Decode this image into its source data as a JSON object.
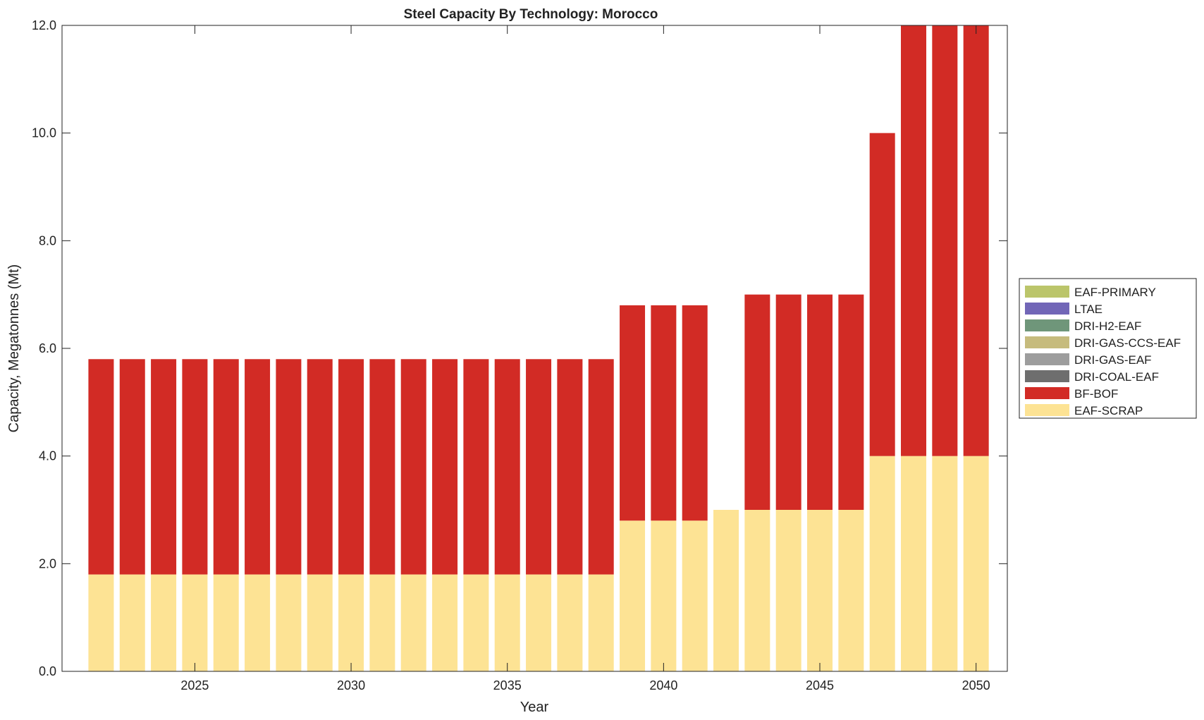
{
  "chart_data": {
    "type": "bar",
    "stacked": true,
    "title": "Steel Capacity By Technology: Morocco",
    "xlabel": "Year",
    "ylabel": "Capacity, Megatonnes (Mt)",
    "ylim": [
      0,
      12
    ],
    "xlim": [
      2020.75,
      2051
    ],
    "yticks": [
      "0.0",
      "2.0",
      "4.0",
      "6.0",
      "8.0",
      "10.0",
      "12.0"
    ],
    "ytick_values": [
      0,
      2,
      4,
      6,
      8,
      10,
      12
    ],
    "xticks": [
      "2025",
      "2030",
      "2035",
      "2040",
      "2045",
      "2050"
    ],
    "xtick_values": [
      2025,
      2030,
      2035,
      2040,
      2045,
      2050
    ],
    "grid": false,
    "legend_placement": "outside-right",
    "categories": [
      2022,
      2023,
      2024,
      2025,
      2026,
      2027,
      2028,
      2029,
      2030,
      2031,
      2032,
      2033,
      2034,
      2035,
      2036,
      2037,
      2038,
      2039,
      2040,
      2041,
      2042,
      2043,
      2044,
      2045,
      2046,
      2047,
      2048,
      2049,
      2050
    ],
    "series": [
      {
        "name": "EAF-SCRAP",
        "color": "#fde394",
        "values": [
          1.8,
          1.8,
          1.8,
          1.8,
          1.8,
          1.8,
          1.8,
          1.8,
          1.8,
          1.8,
          1.8,
          1.8,
          1.8,
          1.8,
          1.8,
          1.8,
          1.8,
          2.8,
          2.8,
          2.8,
          3.0,
          3.0,
          3.0,
          3.0,
          3.0,
          4.0,
          4.0,
          4.0,
          4.0
        ]
      },
      {
        "name": "BF-BOF",
        "color": "#d22b25",
        "values": [
          4.0,
          4.0,
          4.0,
          4.0,
          4.0,
          4.0,
          4.0,
          4.0,
          4.0,
          4.0,
          4.0,
          4.0,
          4.0,
          4.0,
          4.0,
          4.0,
          4.0,
          4.0,
          4.0,
          4.0,
          0,
          4.0,
          4.0,
          4.0,
          4.0,
          6.0,
          8.0,
          8.0,
          8.0
        ]
      },
      {
        "name": "DRI-COAL-EAF",
        "color": "#6e6e6e",
        "values": [
          0,
          0,
          0,
          0,
          0,
          0,
          0,
          0,
          0,
          0,
          0,
          0,
          0,
          0,
          0,
          0,
          0,
          0,
          0,
          0,
          0,
          0,
          0,
          0,
          0,
          0,
          0,
          0,
          0
        ]
      },
      {
        "name": "DRI-GAS-EAF",
        "color": "#9d9d9d",
        "values": [
          0,
          0,
          0,
          0,
          0,
          0,
          0,
          0,
          0,
          0,
          0,
          0,
          0,
          0,
          0,
          0,
          0,
          0,
          0,
          0,
          0,
          0,
          0,
          0,
          0,
          0,
          0,
          0,
          0
        ]
      },
      {
        "name": "DRI-GAS-CCS-EAF",
        "color": "#c6bb7d",
        "values": [
          0,
          0,
          0,
          0,
          0,
          0,
          0,
          0,
          0,
          0,
          0,
          0,
          0,
          0,
          0,
          0,
          0,
          0,
          0,
          0,
          0,
          0,
          0,
          0,
          0,
          0,
          0,
          0,
          0
        ]
      },
      {
        "name": "DRI-H2-EAF",
        "color": "#6f967a",
        "values": [
          0,
          0,
          0,
          0,
          0,
          0,
          0,
          0,
          0,
          0,
          0,
          0,
          0,
          0,
          0,
          0,
          0,
          0,
          0,
          0,
          0,
          0,
          0,
          0,
          0,
          0,
          0,
          0,
          0
        ]
      },
      {
        "name": "LTAE",
        "color": "#7166b7",
        "values": [
          0,
          0,
          0,
          0,
          0,
          0,
          0,
          0,
          0,
          0,
          0,
          0,
          0,
          0,
          0,
          0,
          0,
          0,
          0,
          0,
          0,
          0,
          0,
          0,
          0,
          0,
          0,
          0,
          0
        ]
      },
      {
        "name": "EAF-PRIMARY",
        "color": "#bbc56a",
        "values": [
          0,
          0,
          0,
          0,
          0,
          0,
          0,
          0,
          0,
          0,
          0,
          0,
          0,
          0,
          0,
          0,
          0,
          0,
          0,
          0,
          0,
          0,
          0,
          0,
          0,
          0,
          0,
          0,
          0
        ]
      }
    ],
    "legend_order": [
      "EAF-PRIMARY",
      "LTAE",
      "DRI-H2-EAF",
      "DRI-GAS-CCS-EAF",
      "DRI-GAS-EAF",
      "DRI-COAL-EAF",
      "BF-BOF",
      "EAF-SCRAP"
    ]
  }
}
